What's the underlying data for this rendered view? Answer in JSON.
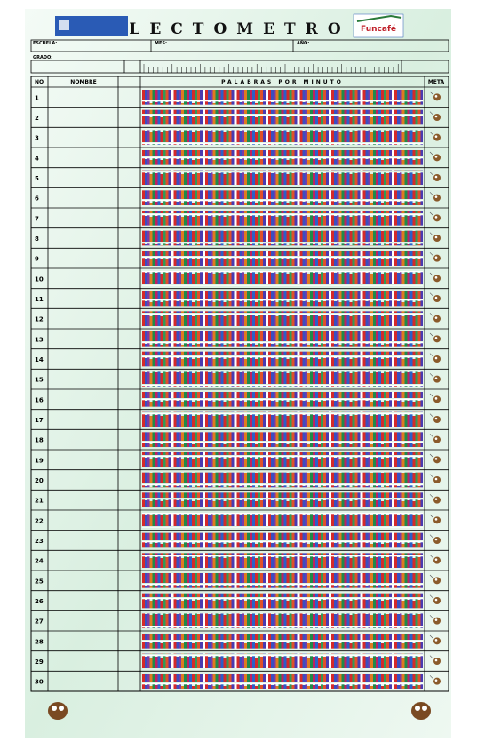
{
  "header": {
    "title": "LECTOMETRO",
    "logo_right": "Funcafé"
  },
  "fields": {
    "school": "ESCUELA:",
    "month": "MES:",
    "year": "AÑO:",
    "grade": "GRADO:"
  },
  "table": {
    "columns": [
      "NO",
      "NOMBRE",
      "PALABRAS POR MINUTO",
      "META"
    ],
    "rows": [
      "1",
      "2",
      "3",
      "4",
      "5",
      "6",
      "7",
      "8",
      "9",
      "10",
      "11",
      "12",
      "13",
      "14",
      "15",
      "16",
      "17",
      "18",
      "19",
      "20",
      "21",
      "22",
      "23",
      "24",
      "25",
      "26",
      "27",
      "28",
      "29",
      "30"
    ]
  }
}
